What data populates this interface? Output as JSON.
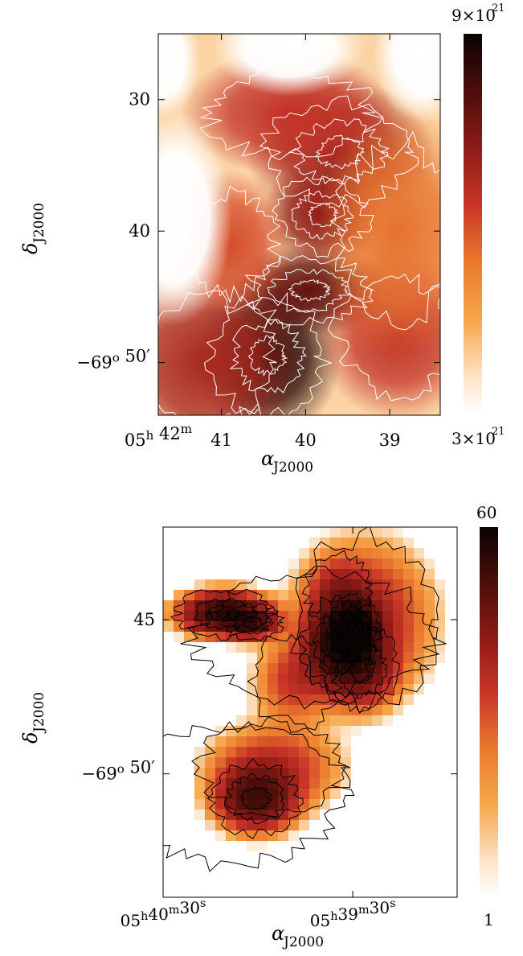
{
  "chart_data": [
    {
      "type": "heatmap",
      "xlabel": "α_J2000",
      "ylabel": "δ_J2000",
      "xlim": [
        41.75,
        38.4
      ],
      "ylim": [
        54.0,
        25.0
      ],
      "x_ticks": [
        {
          "value": 41.75,
          "label": "05h 42m"
        },
        {
          "value": 41.0,
          "label": "41"
        },
        {
          "value": 40.0,
          "label": "40"
        },
        {
          "value": 39.0,
          "label": "39"
        }
      ],
      "y_ticks": [
        {
          "value": 30,
          "label": "30"
        },
        {
          "value": 40,
          "label": "40"
        },
        {
          "value": 50,
          "label": "−69o 50′"
        }
      ],
      "colorbar": {
        "max_label": "9×10²¹",
        "min_label": "3×10²¹",
        "max": 9e+21,
        "min": 3e+21
      },
      "contour_color": "#ffffff",
      "blobs": [
        {
          "x": 40.45,
          "y": 49.5,
          "value": 8.6e+21,
          "sx": 0.55,
          "sy": 4.0
        },
        {
          "x": 39.95,
          "y": 44.5,
          "value": 7.8e+21,
          "sx": 0.6,
          "sy": 2.2
        },
        {
          "x": 39.8,
          "y": 38.8,
          "value": 7.2e+21,
          "sx": 0.45,
          "sy": 2.5
        },
        {
          "x": 39.6,
          "y": 34.0,
          "value": 7e+21,
          "sx": 0.7,
          "sy": 3.5
        },
        {
          "x": 40.2,
          "y": 31.0,
          "value": 6.4e+21,
          "sx": 0.8,
          "sy": 3.0
        },
        {
          "x": 41.2,
          "y": 50.0,
          "value": 6.8e+21,
          "sx": 0.7,
          "sy": 4.5
        },
        {
          "x": 38.9,
          "y": 48.0,
          "value": 6.4e+21,
          "sx": 0.6,
          "sy": 4.0
        },
        {
          "x": 40.9,
          "y": 41.0,
          "value": 6e+21,
          "sx": 0.45,
          "sy": 3.5
        },
        {
          "x": 38.9,
          "y": 40.0,
          "value": 5.5e+21,
          "sx": 0.6,
          "sy": 6.0
        }
      ],
      "voids": [
        {
          "x": 41.55,
          "y": 39.0,
          "sx": 0.45,
          "sy": 5.5
        },
        {
          "x": 40.2,
          "y": 26.0,
          "sx": 0.6,
          "sy": 2.5
        },
        {
          "x": 38.6,
          "y": 26.5,
          "sx": 0.4,
          "sy": 3.5
        },
        {
          "x": 41.7,
          "y": 27.0,
          "sx": 0.3,
          "sy": 3.0
        }
      ]
    },
    {
      "type": "heatmap",
      "xlabel": "α_J2000",
      "ylabel": "δ_J2000",
      "xlim": [
        40.5,
        38.95
      ],
      "ylim": [
        42.0,
        54.0
      ],
      "x_ticks": [
        {
          "value": 40.5,
          "label": "05h40m30s"
        },
        {
          "value": 39.5,
          "label": "05h39m30s"
        }
      ],
      "y_ticks": [
        {
          "value": 45,
          "label": "45"
        },
        {
          "value": 50,
          "label": "−69o 50′"
        }
      ],
      "colorbar": {
        "max_label": "60",
        "min_label": "1",
        "max": 60,
        "min": 1
      },
      "contour_color": "#000000",
      "blobs": [
        {
          "x": 39.49,
          "y": 45.3,
          "value": 60,
          "sx": 0.07,
          "sy": 0.55
        },
        {
          "x": 39.58,
          "y": 45.8,
          "value": 38,
          "sx": 0.1,
          "sy": 0.8
        },
        {
          "x": 40.18,
          "y": 44.8,
          "value": 45,
          "sx": 0.13,
          "sy": 0.4
        },
        {
          "x": 40.03,
          "y": 45.1,
          "value": 28,
          "sx": 0.08,
          "sy": 0.3
        },
        {
          "x": 40.01,
          "y": 50.8,
          "value": 34,
          "sx": 0.12,
          "sy": 0.6
        },
        {
          "x": 39.45,
          "y": 46.6,
          "value": 22,
          "sx": 0.1,
          "sy": 0.7
        },
        {
          "x": 39.81,
          "y": 47.0,
          "value": 10,
          "sx": 0.12,
          "sy": 0.8
        },
        {
          "x": 39.58,
          "y": 44.0,
          "value": 9,
          "sx": 0.09,
          "sy": 0.6
        },
        {
          "x": 39.92,
          "y": 49.8,
          "value": 12,
          "sx": 0.2,
          "sy": 0.8
        },
        {
          "x": 39.44,
          "y": 45.0,
          "value": 15,
          "sx": 0.2,
          "sy": 1.4
        }
      ]
    }
  ]
}
